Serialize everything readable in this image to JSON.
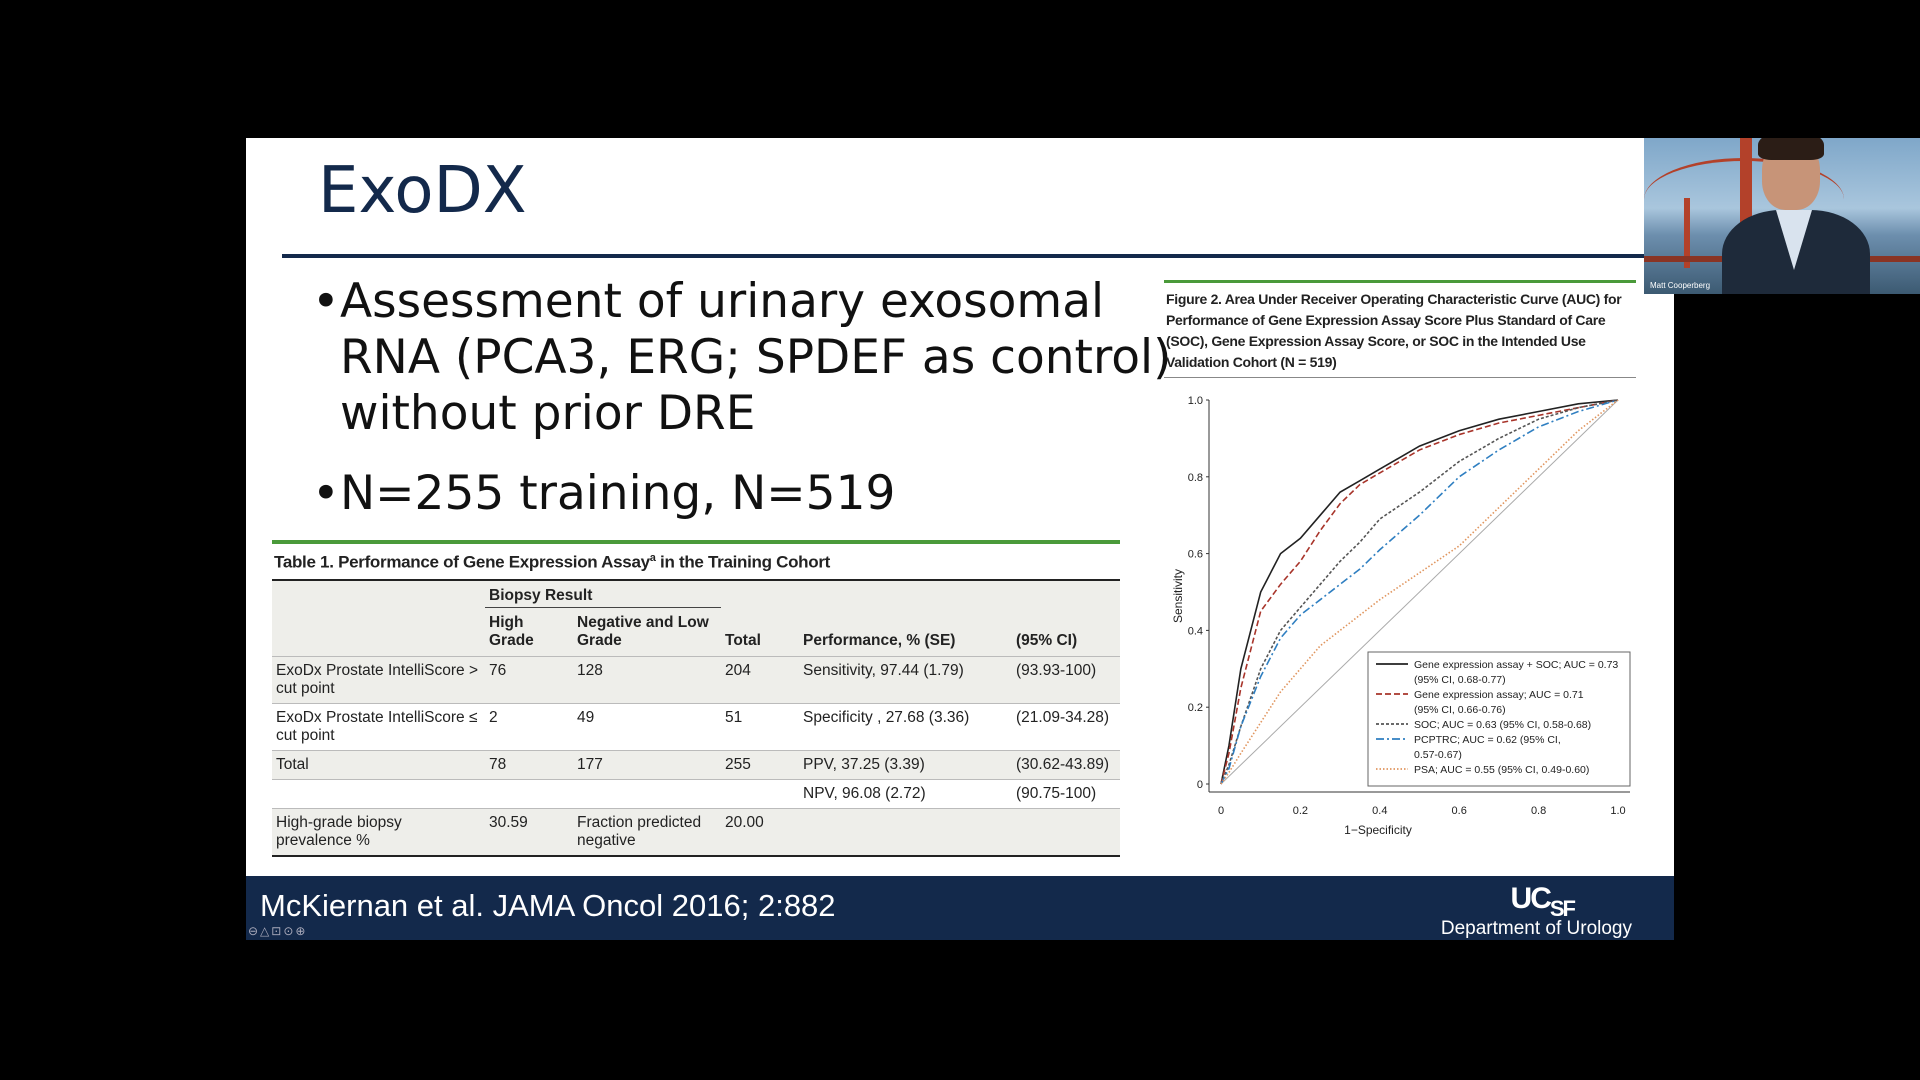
{
  "slide": {
    "title": "ExoDX",
    "bullets": [
      "Assessment of urinary exosomal RNA (PCA3, ERG; SPDEF as control) without prior DRE",
      "N=255 training, N=519"
    ]
  },
  "table": {
    "caption_pre": "Table 1. Performance of Gene Expression Assay",
    "caption_sup": "a",
    "caption_post": " in the Training Cohort",
    "group_header": "Biopsy Result",
    "headers": [
      "High Grade",
      "Negative and Low Grade",
      "Total",
      "Performance, % (SE)",
      "(95% CI)"
    ],
    "rows": [
      {
        "label": "ExoDx Prostate IntelliScore > cut point",
        "high": "76",
        "neg": "128",
        "total": "204",
        "perf": "Sensitivity, 97.44 (1.79)",
        "ci": "(93.93-100)"
      },
      {
        "label": "ExoDx Prostate IntelliScore ≤ cut point",
        "high": "2",
        "neg": "49",
        "total": "51",
        "perf": "Specificity , 27.68 (3.36)",
        "ci": "(21.09-34.28)"
      },
      {
        "label": "Total",
        "high": "78",
        "neg": "177",
        "total": "255",
        "perf": "PPV, 37.25 (3.39)",
        "ci": "(30.62-43.89)"
      },
      {
        "label": "",
        "high": "",
        "neg": "",
        "total": "",
        "perf": "NPV, 96.08 (2.72)",
        "ci": "(90.75-100)"
      },
      {
        "label": "High-grade biopsy prevalence %",
        "high": "30.59",
        "neg": "Fraction predicted negative",
        "total": "20.00",
        "perf": "",
        "ci": ""
      }
    ]
  },
  "figure": {
    "caption": "Figure 2. Area Under Receiver Operating Characteristic Curve (AUC) for Performance of Gene Expression Assay Score Plus Standard of Care (SOC), Gene Expression Assay Score, or SOC in the Intended Use Validation Cohort (N = 519)"
  },
  "chart_data": {
    "type": "line",
    "xlabel": "1−Specificity",
    "ylabel": "Sensitivity",
    "xlim": [
      0,
      1
    ],
    "ylim": [
      0,
      1
    ],
    "ticks": [
      "0",
      "0.2",
      "0.4",
      "0.6",
      "0.8",
      "1.0"
    ],
    "grid": false,
    "legend_position": "bottom-right",
    "reference_line": true,
    "series": [
      {
        "name": "Gene expression assay + SOC; AUC = 0.73",
        "legend_line2": "(95% CI, 0.68-0.77)",
        "color": "#222222",
        "dash": "",
        "x": [
          0,
          0.02,
          0.05,
          0.1,
          0.15,
          0.2,
          0.25,
          0.3,
          0.35,
          0.4,
          0.5,
          0.6,
          0.7,
          0.8,
          0.9,
          1.0
        ],
        "y": [
          0,
          0.1,
          0.3,
          0.5,
          0.6,
          0.64,
          0.7,
          0.76,
          0.79,
          0.82,
          0.88,
          0.92,
          0.95,
          0.97,
          0.99,
          1.0
        ]
      },
      {
        "name": "Gene expression assay; AUC = 0.71",
        "legend_line2": "(95% CI, 0.66-0.76)",
        "color": "#a8342a",
        "dash": "6 3",
        "x": [
          0,
          0.02,
          0.05,
          0.1,
          0.15,
          0.2,
          0.25,
          0.3,
          0.35,
          0.4,
          0.5,
          0.6,
          0.7,
          0.8,
          0.9,
          1.0
        ],
        "y": [
          0,
          0.08,
          0.25,
          0.45,
          0.52,
          0.58,
          0.66,
          0.73,
          0.78,
          0.81,
          0.87,
          0.91,
          0.94,
          0.96,
          0.98,
          1.0
        ]
      },
      {
        "name": "SOC; AUC = 0.63 (95% CI, 0.58-0.68)",
        "legend_line2": "",
        "color": "#555555",
        "dash": "3 2",
        "x": [
          0,
          0.02,
          0.05,
          0.1,
          0.15,
          0.2,
          0.25,
          0.3,
          0.35,
          0.4,
          0.5,
          0.6,
          0.7,
          0.8,
          0.9,
          1.0
        ],
        "y": [
          0,
          0.05,
          0.15,
          0.3,
          0.4,
          0.46,
          0.52,
          0.58,
          0.63,
          0.69,
          0.76,
          0.84,
          0.9,
          0.95,
          0.98,
          1.0
        ]
      },
      {
        "name": "PCPTRC; AUC = 0.62 (95% CI,",
        "legend_line2": "0.57-0.67)",
        "color": "#2f7fc1",
        "dash": "8 3 2 3",
        "x": [
          0,
          0.02,
          0.05,
          0.1,
          0.15,
          0.2,
          0.25,
          0.3,
          0.35,
          0.4,
          0.5,
          0.6,
          0.7,
          0.8,
          0.9,
          1.0
        ],
        "y": [
          0,
          0.04,
          0.15,
          0.28,
          0.38,
          0.44,
          0.48,
          0.52,
          0.56,
          0.61,
          0.7,
          0.8,
          0.87,
          0.93,
          0.97,
          1.0
        ]
      },
      {
        "name": "PSA; AUC = 0.55 (95% CI, 0.49-0.60)",
        "legend_line2": "",
        "color": "#e0955e",
        "dash": "1.5 2",
        "x": [
          0,
          0.02,
          0.05,
          0.1,
          0.15,
          0.2,
          0.25,
          0.3,
          0.35,
          0.4,
          0.5,
          0.6,
          0.7,
          0.8,
          0.9,
          1.0
        ],
        "y": [
          0,
          0.03,
          0.08,
          0.16,
          0.24,
          0.3,
          0.36,
          0.4,
          0.44,
          0.48,
          0.55,
          0.62,
          0.72,
          0.82,
          0.92,
          1.0
        ]
      }
    ]
  },
  "footer": {
    "citation": "McKiernan et al. JAMA Oncol 2016; 2:882",
    "logo_main": "UC",
    "logo_sub": "SF",
    "department": "Department of Urology",
    "controls": "⊖△⊡⊙⊕"
  },
  "webcam": {
    "name": "Matt Cooperberg",
    "colors": {
      "tower": "#b3412a",
      "sky": "#a9c6dd"
    }
  }
}
